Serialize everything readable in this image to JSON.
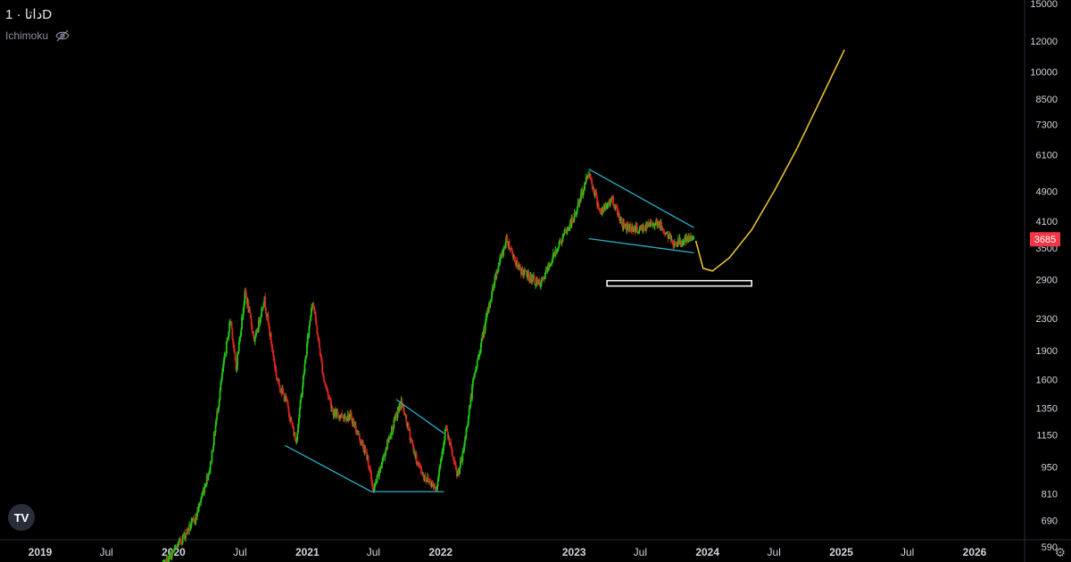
{
  "header": {
    "symbol": "داتا",
    "separator": "·",
    "interval": "1D"
  },
  "indicator": {
    "name": "Ichimoku",
    "icon": "eye-off-icon"
  },
  "logo": {
    "text": "TV"
  },
  "settings_icon": "gear-icon",
  "colors": {
    "background": "#000000",
    "up": "#22c716",
    "down": "#d62424",
    "trendline": "#2ab0c8",
    "projection": "#e6c02e",
    "price_label_bg": "#f23645",
    "axis_text": "#d1d4dc"
  },
  "chart_data": {
    "type": "candlestick",
    "y_scale": "log",
    "ylim": [
      545,
      15000
    ],
    "y_ticks": [
      15000,
      12000,
      10000,
      8500,
      7300,
      6100,
      4900,
      4100,
      3500,
      2900,
      2300,
      1900,
      1600,
      1350,
      1150,
      950,
      810,
      690,
      590
    ],
    "x_ticks": [
      "2019",
      "Jul",
      "2020",
      "Jul",
      "2021",
      "Jul",
      "2022",
      "2023",
      "Jul",
      "2024",
      "Jul",
      "2025",
      "Jul",
      "2026"
    ],
    "last_price": 3685,
    "price_path": [
      [
        "2019-12-01",
        520
      ],
      [
        "2020-01-15",
        600
      ],
      [
        "2020-03-01",
        700
      ],
      [
        "2020-04-10",
        950
      ],
      [
        "2020-05-15",
        1700
      ],
      [
        "2020-06-05",
        2300
      ],
      [
        "2020-06-20",
        1700
      ],
      [
        "2020-07-15",
        2700
      ],
      [
        "2020-08-10",
        2000
      ],
      [
        "2020-09-05",
        2600
      ],
      [
        "2020-10-10",
        1600
      ],
      [
        "2020-11-05",
        1400
      ],
      [
        "2020-12-01",
        1100
      ],
      [
        "2021-01-15",
        2600
      ],
      [
        "2021-02-15",
        1600
      ],
      [
        "2021-03-15",
        1300
      ],
      [
        "2021-05-01",
        1280
      ],
      [
        "2021-06-15",
        1000
      ],
      [
        "2021-07-01",
        820
      ],
      [
        "2021-08-15",
        1150
      ],
      [
        "2021-09-15",
        1400
      ],
      [
        "2021-10-25",
        1000
      ],
      [
        "2021-11-15",
        900
      ],
      [
        "2021-12-20",
        840
      ],
      [
        "2022-01-15",
        1200
      ],
      [
        "2022-02-15",
        900
      ],
      [
        "2022-03-01",
        1000
      ],
      [
        "2022-04-01",
        1600
      ],
      [
        "2022-06-01",
        3000
      ],
      [
        "2022-07-01",
        3700
      ],
      [
        "2022-08-01",
        3100
      ],
      [
        "2022-10-01",
        2800
      ],
      [
        "2022-11-15",
        3500
      ],
      [
        "2023-01-01",
        4200
      ],
      [
        "2023-02-10",
        5500
      ],
      [
        "2023-03-15",
        4300
      ],
      [
        "2023-04-15",
        4700
      ],
      [
        "2023-05-15",
        4000
      ],
      [
        "2023-07-01",
        3900
      ],
      [
        "2023-08-15",
        4100
      ],
      [
        "2023-10-01",
        3600
      ],
      [
        "2023-11-25",
        3700
      ]
    ],
    "trendlines": [
      {
        "from": [
          "2020-11-01",
          1080
        ],
        "to": [
          "2021-06-25",
          820
        ]
      },
      {
        "from": [
          "2021-06-25",
          820
        ],
        "to": [
          "2022-01-10",
          820
        ]
      },
      {
        "from": [
          "2021-09-01",
          1420
        ],
        "to": [
          "2022-01-10",
          1160
        ]
      },
      {
        "from": [
          "2023-02-10",
          5600
        ],
        "to": [
          "2023-11-25",
          3950
        ]
      },
      {
        "from": [
          "2023-02-10",
          3700
        ],
        "to": [
          "2023-11-25",
          3400
        ]
      }
    ],
    "projection": [
      [
        "2023-11-30",
        3650
      ],
      [
        "2023-12-20",
        3100
      ],
      [
        "2024-01-15",
        3050
      ],
      [
        "2024-03-01",
        3300
      ],
      [
        "2024-05-01",
        3900
      ],
      [
        "2024-07-01",
        4900
      ],
      [
        "2024-09-01",
        6300
      ],
      [
        "2024-11-01",
        8300
      ],
      [
        "2025-01-10",
        11400
      ]
    ],
    "target_box": {
      "from": [
        "2023-04-01",
        2880
      ],
      "to": [
        "2024-05-01",
        2800
      ]
    }
  }
}
